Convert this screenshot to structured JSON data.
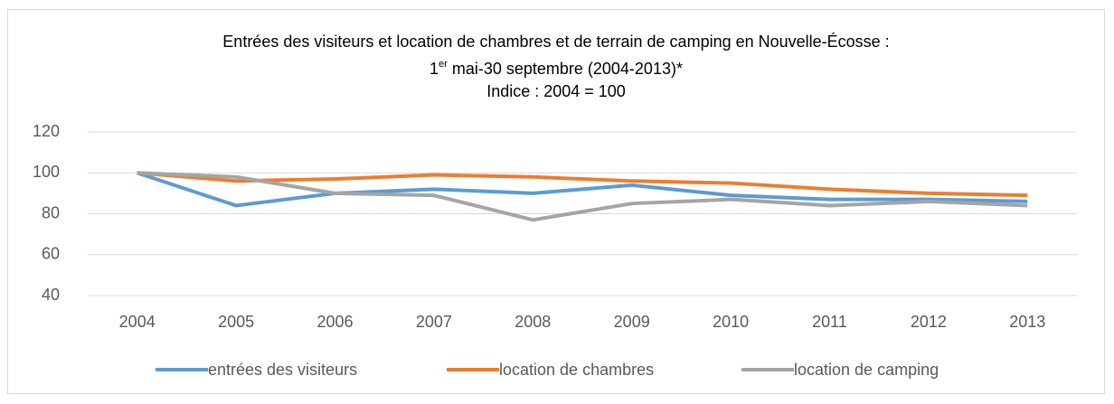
{
  "chart_data": {
    "type": "line",
    "title": "Entrées des visiteurs et location de chambres et de terrain de camping en Nouvelle-Écosse :",
    "subtitle": [
      "1",
      "er",
      " mai-30 septembre (2004-2013)*"
    ],
    "note": "Indice : 2004 = 100",
    "categories": [
      "2004",
      "2005",
      "2006",
      "2007",
      "2008",
      "2009",
      "2010",
      "2011",
      "2012",
      "2013"
    ],
    "series": [
      {
        "name": "entrées des visiteurs",
        "color": "#5b9bd5",
        "values": [
          100,
          84,
          90,
          92,
          90,
          94,
          89,
          87,
          87,
          86
        ]
      },
      {
        "name": "location de chambres",
        "color": "#ed7d31",
        "values": [
          100,
          96,
          97,
          99,
          98,
          96,
          95,
          92,
          90,
          89
        ]
      },
      {
        "name": "location de camping",
        "color": "#a5a5a5",
        "values": [
          100,
          98,
          90,
          89,
          77,
          85,
          87,
          84,
          86,
          84
        ]
      }
    ],
    "ylim": [
      40,
      120
    ],
    "yticks": [
      40,
      60,
      80,
      100,
      120
    ],
    "grid": true,
    "legend": "bottom"
  }
}
